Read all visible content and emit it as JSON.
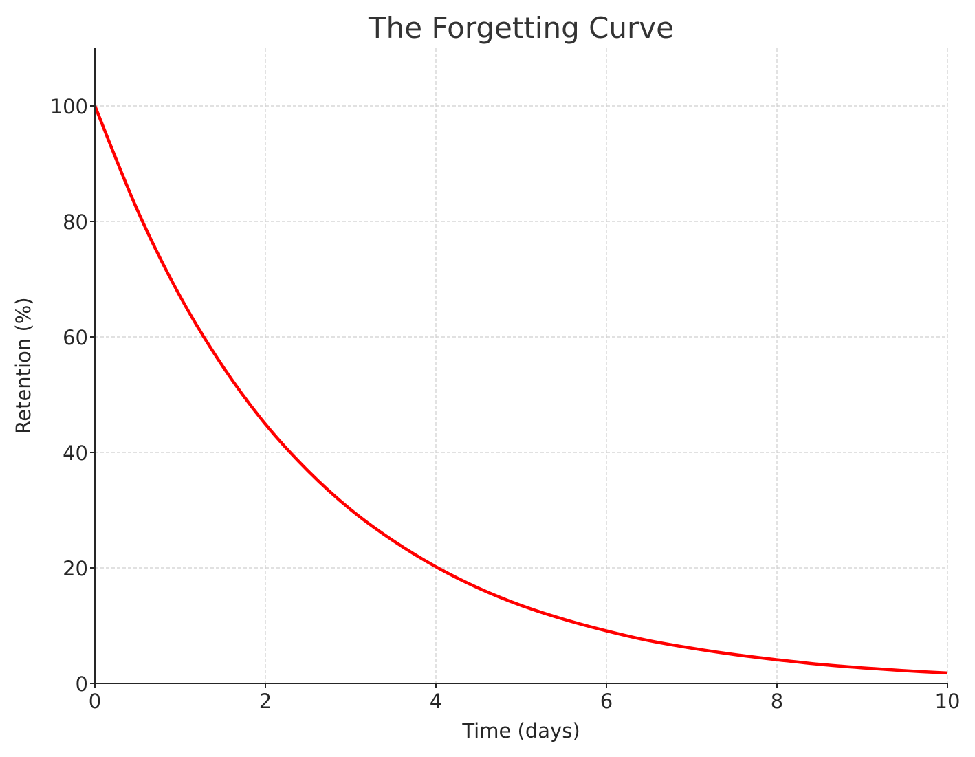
{
  "chart_data": {
    "type": "line",
    "title": "The Forgetting Curve",
    "xlabel": "Time (days)",
    "ylabel": "Retention (%)",
    "xlim": [
      0,
      10
    ],
    "ylim": [
      0,
      110
    ],
    "xticks": [
      0,
      2,
      4,
      6,
      8,
      10
    ],
    "xtick_labels": [
      "0",
      "2",
      "4",
      "6",
      "8",
      "10"
    ],
    "yticks": [
      0,
      20,
      40,
      60,
      80,
      100
    ],
    "ytick_labels": [
      "0",
      "20",
      "40",
      "60",
      "80",
      "100"
    ],
    "grid": true,
    "series": [
      {
        "color": "#ff0000",
        "x": [
          0,
          0.5,
          1,
          1.5,
          2,
          2.5,
          3,
          3.5,
          4,
          4.5,
          5,
          5.5,
          6,
          6.5,
          7,
          7.5,
          8,
          8.5,
          9,
          9.5,
          10
        ],
        "y": [
          100,
          81.9,
          67.0,
          54.9,
          44.9,
          36.8,
          30.1,
          24.7,
          20.2,
          16.5,
          13.5,
          11.1,
          9.1,
          7.4,
          6.1,
          5.0,
          4.1,
          3.3,
          2.7,
          2.2,
          1.8
        ]
      }
    ]
  }
}
